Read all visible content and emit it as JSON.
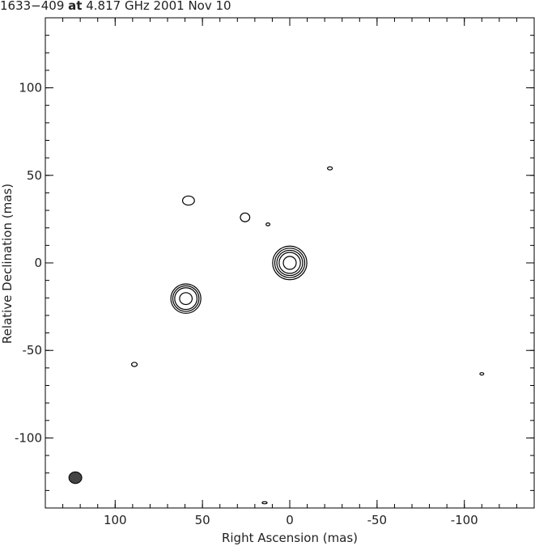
{
  "chart_data": {
    "type": "contour",
    "title": {
      "source": "1633−409",
      "at": "at",
      "frequency": "4.817 GHz",
      "date": "2001 Nov 10"
    },
    "xlabel": "Right Ascension  (mas)",
    "ylabel": "Relative Declination  (mas)",
    "xlim": [
      140,
      -140
    ],
    "ylim": [
      -140,
      140
    ],
    "xticks": [
      100,
      50,
      0,
      -50,
      -100
    ],
    "yticks": [
      -100,
      -50,
      0,
      50,
      100
    ],
    "minor_step": 10,
    "color": "#000000",
    "beam_color": "#444444",
    "components": [
      {
        "x": 0,
        "y": 0,
        "rx": [
          9.8,
          8.6,
          7.4,
          6.1,
          3.7
        ],
        "ry": [
          9.6,
          8.4,
          7.2,
          6.0,
          3.7
        ]
      },
      {
        "x": 59.5,
        "y": -20.4,
        "rx": [
          8.6,
          7.5,
          6.4,
          3.6
        ],
        "ry": [
          8.4,
          7.3,
          6.2,
          3.4
        ]
      },
      {
        "x": 58,
        "y": 35.6,
        "rx": [
          3.4
        ],
        "ry": [
          2.6
        ]
      },
      {
        "x": 25.6,
        "y": 26,
        "rx": [
          2.7
        ],
        "ry": [
          2.5
        ]
      },
      {
        "x": 12.5,
        "y": 22,
        "rx": [
          1.1
        ],
        "ry": [
          0.8
        ]
      },
      {
        "x": -23,
        "y": 54,
        "rx": [
          1.4
        ],
        "ry": [
          0.9
        ]
      },
      {
        "x": 89,
        "y": -58,
        "rx": [
          1.6
        ],
        "ry": [
          1.2
        ]
      },
      {
        "x": -110,
        "y": -63.4,
        "rx": [
          1.1
        ],
        "ry": [
          0.7
        ]
      },
      {
        "x": 14.4,
        "y": -137,
        "rx": [
          1.4
        ],
        "ry": [
          0.6
        ]
      }
    ],
    "beam": {
      "x": 122.8,
      "y": -122.7,
      "rx": 3.7,
      "ry": 3.3
    }
  }
}
